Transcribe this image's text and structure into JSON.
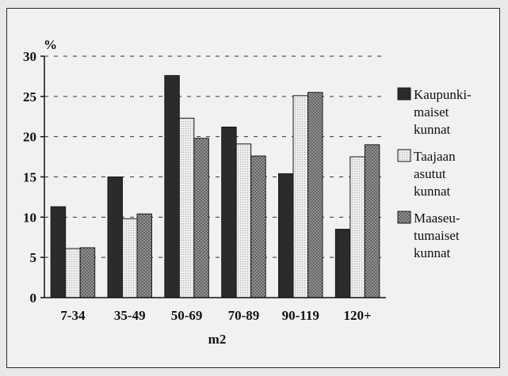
{
  "chart_data": {
    "type": "bar",
    "title": "",
    "ylabel": "%",
    "xlabel": "m2",
    "ylim": [
      0,
      30
    ],
    "yticks": [
      0,
      5,
      10,
      15,
      20,
      25,
      30
    ],
    "grid": "dashed horizontal",
    "legend_position": "right",
    "categories": [
      "7-34",
      "35-49",
      "50-69",
      "70-89",
      "90-119",
      "120+"
    ],
    "series": [
      {
        "name": "Kaupunki-maiset kunnat",
        "legend_lines": [
          "Kaupunki-",
          "maiset",
          "kunnat"
        ],
        "color": "#2b2b2b",
        "pattern": "solid",
        "values": [
          11.3,
          15.0,
          27.6,
          21.2,
          15.4,
          8.5
        ]
      },
      {
        "name": "Taajaan asutut kunnat",
        "legend_lines": [
          "Taajaan",
          "asutut",
          "kunnat"
        ],
        "color": "#e2e2e0",
        "pattern": "light-dots",
        "values": [
          6.1,
          9.8,
          22.3,
          19.1,
          25.1,
          17.5
        ]
      },
      {
        "name": "Maaseu-tumaiset kunnat",
        "legend_lines": [
          "Maaseu-",
          "tumaiset",
          "kunnat"
        ],
        "color": "#8d8d8d",
        "pattern": "crosshatch",
        "values": [
          6.2,
          10.4,
          19.8,
          17.6,
          25.5,
          19.0
        ]
      }
    ]
  }
}
